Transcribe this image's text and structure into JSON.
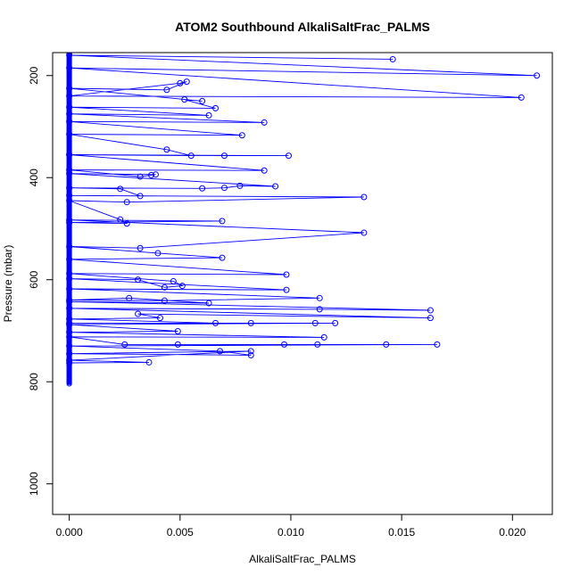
{
  "chart_data": {
    "type": "line",
    "title": "ATOM2 Southbound AlkaliSaltFrac_PALMS",
    "xlabel": "AlkaliSaltFrac_PALMS",
    "ylabel": "Pressure (mbar)",
    "xlim": [
      -0.00075,
      0.0218
    ],
    "ylim": [
      1060,
      155
    ],
    "y_reversed": true,
    "x_ticks": [
      "0.000",
      "0.005",
      "0.010",
      "0.015",
      "0.020"
    ],
    "x_tick_values": [
      0.0,
      0.005,
      0.01,
      0.015,
      0.02
    ],
    "y_ticks": [
      "200",
      "400",
      "600",
      "800",
      "1000"
    ],
    "y_tick_values": [
      200,
      400,
      600,
      800,
      1000
    ],
    "grid": false,
    "colors": {
      "series": "#0000ff",
      "axes": "#000000"
    },
    "series": [
      {
        "style": "line+open-circle-markers",
        "x": [
          0.0146,
          0.0,
          0.0211,
          0.0,
          0.0204,
          0.0,
          0.005,
          0.0053,
          0.0044,
          0.0,
          0.006,
          0.0052,
          0.0066,
          0.0,
          0.0063,
          0.0,
          0.0088,
          0.0,
          0.0078,
          0.0,
          0.0044,
          0.0055,
          0.0,
          0.007,
          0.0099,
          0.0,
          0.0088,
          0.0,
          0.0032,
          0.0037,
          0.0039,
          0.0,
          0.0093,
          0.0077,
          0.007,
          0.006,
          0.0,
          0.0023,
          0.0032,
          0.0,
          0.0133,
          0.0026,
          0.0,
          0.0023,
          0.0026,
          0.0,
          0.0069,
          0.0,
          0.0133,
          0.0032,
          0.0,
          0.004,
          0.0069,
          0.0,
          0.0098,
          0.0,
          0.0047,
          0.0051,
          0.0043,
          0.0031,
          0.0,
          0.0098,
          0.0,
          0.0113,
          0.0043,
          0.0,
          0.0027,
          0.0063,
          0.0,
          0.0163,
          0.0113,
          0.0,
          0.0163,
          0.0031,
          0.0041,
          0.0,
          0.0066,
          0.0082,
          0.0111,
          0.0,
          0.012,
          0.0,
          0.0049,
          0.0,
          0.0115,
          0.0,
          0.0025,
          0.0049,
          0.0097,
          0.0112,
          0.0143,
          0.0166,
          0.0,
          0.0068,
          0.0082,
          0.0,
          0.0082,
          0.0,
          0.0036,
          0.0
        ],
        "y": [
          168,
          160,
          200,
          185,
          243,
          240,
          215,
          212,
          228,
          225,
          250,
          247,
          264,
          262,
          278,
          275,
          292,
          290,
          317,
          315,
          345,
          357,
          355,
          357,
          357,
          355,
          386,
          385,
          398,
          395,
          394,
          392,
          417,
          416,
          420,
          421,
          420,
          422,
          436,
          435,
          438,
          448,
          445,
          482,
          490,
          488,
          485,
          483,
          508,
          538,
          535,
          548,
          557,
          560,
          590,
          588,
          603,
          612,
          615,
          600,
          598,
          620,
          618,
          636,
          641,
          640,
          636,
          646,
          643,
          660,
          658,
          656,
          675,
          667,
          675,
          677,
          685,
          685,
          685,
          685,
          685,
          688,
          701,
          703,
          713,
          712,
          727,
          727,
          727,
          727,
          727,
          727,
          730,
          740,
          748,
          745,
          740,
          758,
          762,
          763
        ]
      }
    ],
    "zero_cluster": {
      "x": 0.0,
      "y_from": 155,
      "y_to": 805
    }
  }
}
